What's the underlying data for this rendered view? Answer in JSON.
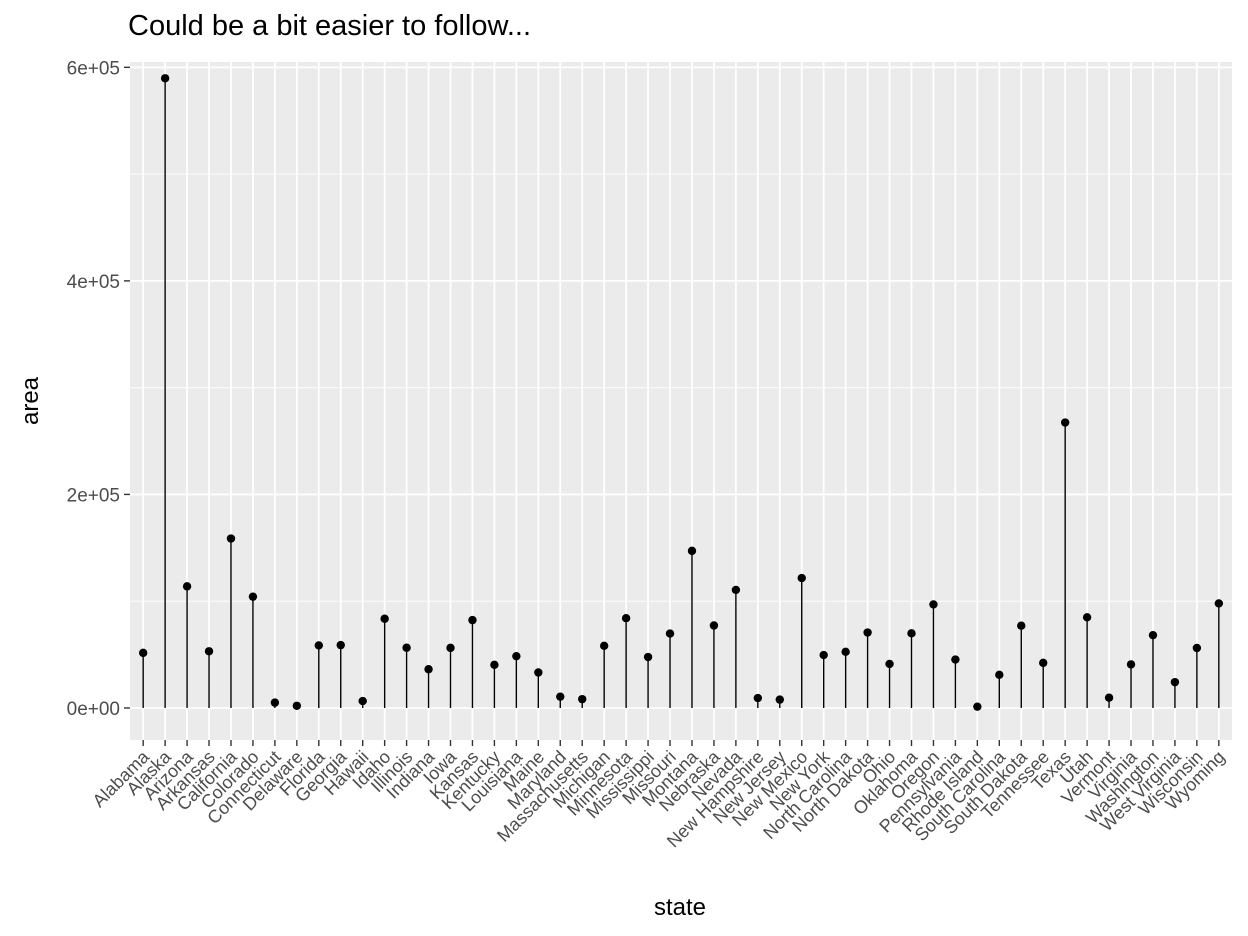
{
  "chart_data": {
    "type": "lollipop",
    "title": "Could be a bit easier to follow...",
    "xlabel": "state",
    "ylabel": "area",
    "ylim": [
      -30000,
      605000
    ],
    "y_ticks": [
      0,
      200000,
      400000,
      600000
    ],
    "y_tick_labels": [
      "0e+00",
      "2e+05",
      "4e+05",
      "6e+05"
    ],
    "grid": true,
    "background": "#EBEBEB",
    "gridline_color": "#FFFFFF",
    "point_color": "#000000",
    "categories": [
      "Alabama",
      "Alaska",
      "Arizona",
      "Arkansas",
      "California",
      "Colorado",
      "Connecticut",
      "Delaware",
      "Florida",
      "Georgia",
      "Hawaii",
      "Idaho",
      "Illinois",
      "Indiana",
      "Iowa",
      "Kansas",
      "Kentucky",
      "Louisiana",
      "Maine",
      "Maryland",
      "Massachusetts",
      "Michigan",
      "Minnesota",
      "Mississippi",
      "Missouri",
      "Montana",
      "Nebraska",
      "Nevada",
      "New Hampshire",
      "New Jersey",
      "New Mexico",
      "New York",
      "North Carolina",
      "North Dakota",
      "Ohio",
      "Oklahoma",
      "Oregon",
      "Pennsylvania",
      "Rhode Island",
      "South Carolina",
      "South Dakota",
      "Tennessee",
      "Texas",
      "Utah",
      "Vermont",
      "Virginia",
      "Washington",
      "West Virginia",
      "Wisconsin",
      "Wyoming"
    ],
    "values": [
      51609,
      589757,
      113909,
      53104,
      158693,
      104247,
      5009,
      2057,
      58560,
      58876,
      6450,
      83557,
      56400,
      36291,
      56290,
      82264,
      40395,
      48523,
      33215,
      10577,
      8257,
      58216,
      84068,
      47716,
      69686,
      147138,
      77227,
      110540,
      9304,
      7836,
      121666,
      49576,
      52586,
      70665,
      41222,
      69919,
      96981,
      45333,
      1214,
      31055,
      77047,
      42244,
      267339,
      84916,
      9609,
      40815,
      68192,
      24181,
      56154,
      97914
    ]
  }
}
